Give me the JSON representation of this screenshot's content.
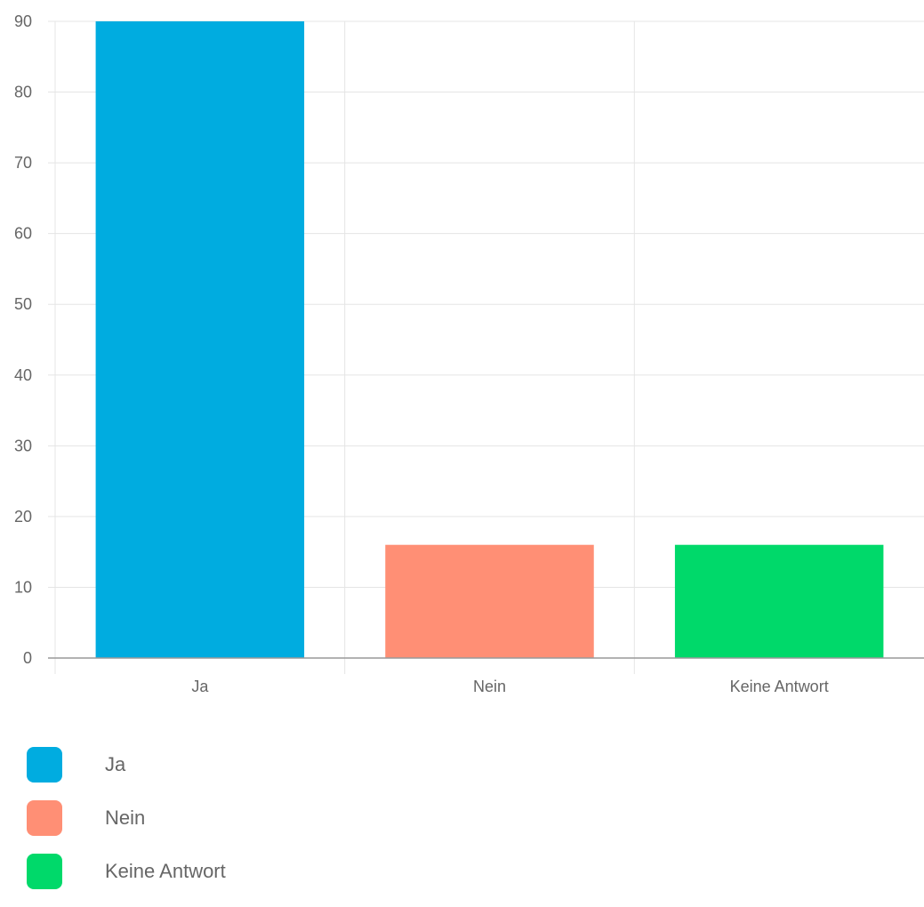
{
  "chart_data": {
    "type": "bar",
    "categories": [
      "Ja",
      "Nein",
      "Keine Antwort"
    ],
    "values": [
      90,
      16,
      16
    ],
    "colors": [
      "#00ace0",
      "#ff8f75",
      "#00d96a"
    ],
    "ylim": [
      0,
      90
    ],
    "yticks": [
      0,
      10,
      20,
      30,
      40,
      50,
      60,
      70,
      80,
      90
    ],
    "grid": true,
    "legend_position": "bottom",
    "title": "",
    "xlabel": "",
    "ylabel": ""
  },
  "legend": {
    "items": [
      {
        "label": "Ja",
        "color": "#00ace0"
      },
      {
        "label": "Nein",
        "color": "#ff8f75"
      },
      {
        "label": "Keine Antwort",
        "color": "#00d96a"
      }
    ]
  }
}
